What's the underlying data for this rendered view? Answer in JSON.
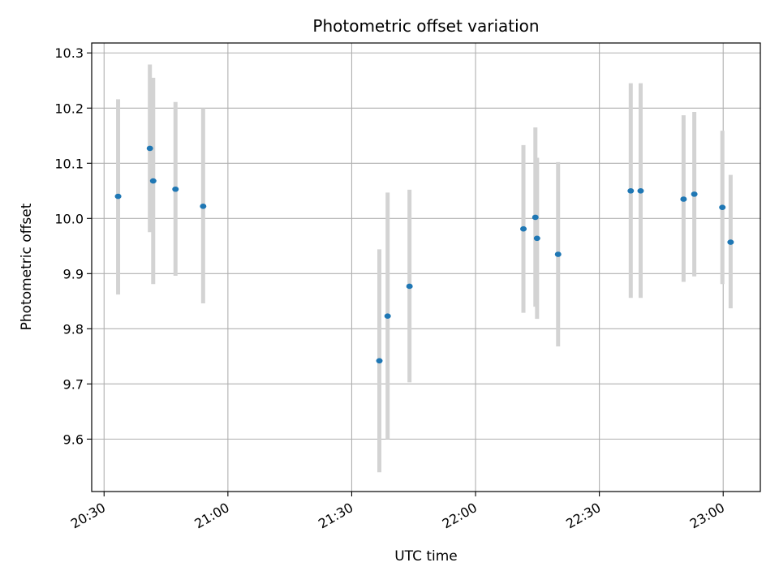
{
  "chart_data": {
    "type": "scatter",
    "title": "Photometric offset variation",
    "xlabel": "UTC time",
    "ylabel": "Photometric offset",
    "x_range": [
      "20:27",
      "23:09"
    ],
    "ylim": [
      9.505,
      10.318
    ],
    "grid": true,
    "x_ticks": [
      "20:30",
      "21:00",
      "21:30",
      "22:00",
      "22:30",
      "23:00"
    ],
    "y_ticks": [
      9.6,
      9.7,
      9.8,
      9.9,
      10.0,
      10.1,
      10.2,
      10.3
    ],
    "marker_color": "#1f77b4",
    "errorbar_color": "#d3d3d3",
    "points": [
      {
        "t": "20:33:24",
        "y": 10.04,
        "lo": 9.862,
        "hi": 10.216
      },
      {
        "t": "20:41:06",
        "y": 10.127,
        "lo": 9.975,
        "hi": 10.279
      },
      {
        "t": "20:41:54",
        "y": 10.068,
        "lo": 9.881,
        "hi": 10.255
      },
      {
        "t": "20:47:18",
        "y": 10.053,
        "lo": 9.896,
        "hi": 10.211
      },
      {
        "t": "20:54:00",
        "y": 10.022,
        "lo": 9.846,
        "hi": 10.2
      },
      {
        "t": "21:36:42",
        "y": 9.742,
        "lo": 9.54,
        "hi": 9.944
      },
      {
        "t": "21:38:42",
        "y": 9.823,
        "lo": 9.6,
        "hi": 10.047
      },
      {
        "t": "21:44:00",
        "y": 9.877,
        "lo": 9.703,
        "hi": 10.052
      },
      {
        "t": "22:11:36",
        "y": 9.981,
        "lo": 9.829,
        "hi": 10.133
      },
      {
        "t": "22:14:30",
        "y": 10.002,
        "lo": 9.84,
        "hi": 10.165
      },
      {
        "t": "22:14:54",
        "y": 9.964,
        "lo": 9.818,
        "hi": 10.11
      },
      {
        "t": "22:20:00",
        "y": 9.935,
        "lo": 9.768,
        "hi": 10.102
      },
      {
        "t": "22:37:36",
        "y": 10.05,
        "lo": 9.856,
        "hi": 10.245
      },
      {
        "t": "22:40:00",
        "y": 10.05,
        "lo": 9.856,
        "hi": 10.245
      },
      {
        "t": "22:50:24",
        "y": 10.035,
        "lo": 9.885,
        "hi": 10.187
      },
      {
        "t": "22:53:00",
        "y": 10.044,
        "lo": 9.895,
        "hi": 10.193
      },
      {
        "t": "22:59:48",
        "y": 10.02,
        "lo": 9.881,
        "hi": 10.159
      },
      {
        "t": "23:01:48",
        "y": 9.957,
        "lo": 9.837,
        "hi": 10.079
      }
    ]
  }
}
